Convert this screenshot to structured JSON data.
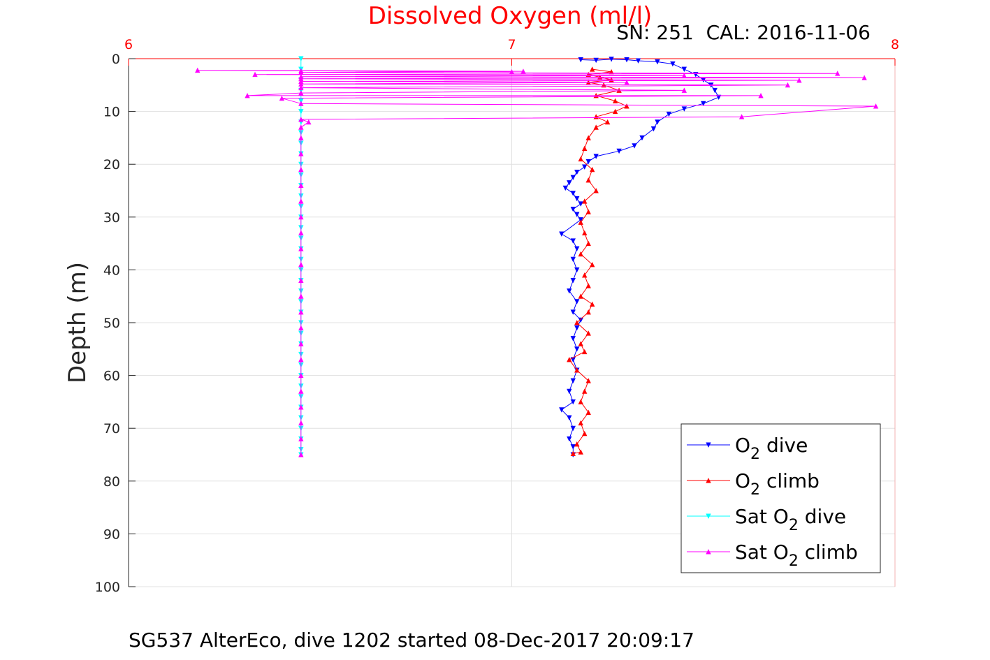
{
  "chart_data": {
    "type": "line",
    "title": "Dissolved Oxygen (ml/l)",
    "subtitle": "SN: 251  CAL: 2016-11-06",
    "caption": "SG537 AlterEco, dive 1202 started 08-Dec-2017 20:09:17",
    "ylabel": "Depth (m)",
    "xlabel": "",
    "xlim": [
      6,
      8
    ],
    "ylim": [
      0,
      100
    ],
    "y_reversed": true,
    "x_axis_position": "top",
    "xticks": [
      "6",
      "7",
      "8"
    ],
    "yticks": [
      "0",
      "10",
      "20",
      "30",
      "40",
      "50",
      "60",
      "70",
      "80",
      "90",
      "100"
    ],
    "grid": true,
    "legend_position": "bottom-right",
    "colors": {
      "title": "#ff0000",
      "x_axis": "#ff0000",
      "o2_dive": "#0000ff",
      "o2_climb": "#ff0000",
      "sat_dive": "#00ffff",
      "sat_climb": "#ff00ff"
    },
    "series": [
      {
        "name_parts": [
          "O",
          "2",
          " dive"
        ],
        "color": "#0000ff",
        "marker": "triangle-down",
        "points": [
          [
            7.18,
            0.2
          ],
          [
            7.22,
            0.3
          ],
          [
            7.26,
            0.1
          ],
          [
            7.3,
            0.2
          ],
          [
            7.33,
            0.4
          ],
          [
            7.38,
            0.6
          ],
          [
            7.42,
            1
          ],
          [
            7.45,
            2
          ],
          [
            7.48,
            3
          ],
          [
            7.5,
            4
          ],
          [
            7.52,
            5
          ],
          [
            7.53,
            6
          ],
          [
            7.54,
            7.3
          ],
          [
            7.5,
            8.5
          ],
          [
            7.45,
            9.5
          ],
          [
            7.41,
            10.5
          ],
          [
            7.38,
            12
          ],
          [
            7.37,
            13.3
          ],
          [
            7.34,
            15
          ],
          [
            7.32,
            16.5
          ],
          [
            7.28,
            17.5
          ],
          [
            7.22,
            18.5
          ],
          [
            7.2,
            19.5
          ],
          [
            7.19,
            20.5
          ],
          [
            7.17,
            21.5
          ],
          [
            7.16,
            22.5
          ],
          [
            7.15,
            23.5
          ],
          [
            7.14,
            24.5
          ],
          [
            7.16,
            25.5
          ],
          [
            7.17,
            26.5
          ],
          [
            7.18,
            27.5
          ],
          [
            7.16,
            28.5
          ],
          [
            7.17,
            29.5
          ],
          [
            7.18,
            30.5
          ],
          [
            7.13,
            33.2
          ],
          [
            7.16,
            34.5
          ],
          [
            7.17,
            36
          ],
          [
            7.16,
            38
          ],
          [
            7.17,
            40
          ],
          [
            7.16,
            42
          ],
          [
            7.15,
            44
          ],
          [
            7.17,
            46
          ],
          [
            7.16,
            48
          ],
          [
            7.18,
            49.5
          ],
          [
            7.17,
            51
          ],
          [
            7.16,
            53
          ],
          [
            7.17,
            55
          ],
          [
            7.16,
            57
          ],
          [
            7.17,
            59
          ],
          [
            7.16,
            61
          ],
          [
            7.15,
            63
          ],
          [
            7.16,
            65
          ],
          [
            7.13,
            66.5
          ],
          [
            7.15,
            68
          ],
          [
            7.16,
            70
          ],
          [
            7.15,
            72
          ],
          [
            7.16,
            73.5
          ],
          [
            7.16,
            75
          ]
        ]
      },
      {
        "name_parts": [
          "O",
          "2",
          " climb"
        ],
        "color": "#ff0000",
        "marker": "triangle-up",
        "points": [
          [
            7.16,
            74.8
          ],
          [
            7.18,
            74.5
          ],
          [
            7.17,
            73
          ],
          [
            7.19,
            71
          ],
          [
            7.18,
            69
          ],
          [
            7.2,
            67
          ],
          [
            7.18,
            65
          ],
          [
            7.19,
            63
          ],
          [
            7.2,
            61
          ],
          [
            7.17,
            59
          ],
          [
            7.15,
            57
          ],
          [
            7.19,
            55.5
          ],
          [
            7.18,
            54
          ],
          [
            7.2,
            52
          ],
          [
            7.17,
            50
          ],
          [
            7.2,
            48
          ],
          [
            7.21,
            46.5
          ],
          [
            7.18,
            45
          ],
          [
            7.2,
            43
          ],
          [
            7.19,
            41
          ],
          [
            7.21,
            39
          ],
          [
            7.18,
            37
          ],
          [
            7.2,
            35
          ],
          [
            7.19,
            33
          ],
          [
            7.18,
            31
          ],
          [
            7.2,
            29
          ],
          [
            7.19,
            27
          ],
          [
            7.22,
            25
          ],
          [
            7.2,
            23
          ],
          [
            7.21,
            21
          ],
          [
            7.18,
            19
          ],
          [
            7.19,
            17
          ],
          [
            7.2,
            15
          ],
          [
            7.22,
            13
          ],
          [
            7.25,
            12
          ],
          [
            7.22,
            11
          ],
          [
            7.27,
            10
          ],
          [
            7.3,
            9
          ],
          [
            7.27,
            8
          ],
          [
            7.22,
            7
          ],
          [
            7.28,
            6
          ],
          [
            7.24,
            5
          ],
          [
            7.2,
            4.5
          ],
          [
            7.26,
            4
          ],
          [
            7.23,
            3.5
          ],
          [
            7.2,
            3
          ],
          [
            7.26,
            2.5
          ],
          [
            7.21,
            2
          ]
        ]
      },
      {
        "name_parts": [
          "Sat O",
          "2",
          " dive"
        ],
        "color": "#00ffff",
        "marker": "triangle-down",
        "points": [
          [
            6.45,
            0
          ],
          [
            6.45,
            2
          ],
          [
            6.45,
            4
          ],
          [
            6.45,
            6
          ],
          [
            6.45,
            8
          ],
          [
            6.45,
            10
          ],
          [
            6.45,
            12
          ],
          [
            6.45,
            14
          ],
          [
            6.45,
            16
          ],
          [
            6.45,
            18
          ],
          [
            6.45,
            20
          ],
          [
            6.45,
            22
          ],
          [
            6.45,
            24
          ],
          [
            6.45,
            26
          ],
          [
            6.45,
            28
          ],
          [
            6.45,
            30
          ],
          [
            6.45,
            32
          ],
          [
            6.45,
            34
          ],
          [
            6.45,
            36
          ],
          [
            6.45,
            38
          ],
          [
            6.45,
            40
          ],
          [
            6.45,
            42
          ],
          [
            6.45,
            44
          ],
          [
            6.45,
            46
          ],
          [
            6.45,
            48
          ],
          [
            6.45,
            50
          ],
          [
            6.45,
            52
          ],
          [
            6.45,
            54
          ],
          [
            6.45,
            56
          ],
          [
            6.45,
            58
          ],
          [
            6.45,
            60
          ],
          [
            6.45,
            62
          ],
          [
            6.45,
            64
          ],
          [
            6.45,
            66
          ],
          [
            6.45,
            68
          ],
          [
            6.45,
            70
          ],
          [
            6.45,
            72
          ],
          [
            6.45,
            74
          ],
          [
            6.45,
            75
          ]
        ]
      },
      {
        "name_parts": [
          "Sat O",
          "2",
          " climb"
        ],
        "color": "#ff00ff",
        "marker": "triangle-up",
        "points": [
          [
            6.45,
            75
          ],
          [
            6.45,
            72
          ],
          [
            6.45,
            69
          ],
          [
            6.45,
            66
          ],
          [
            6.45,
            63
          ],
          [
            6.45,
            60
          ],
          [
            6.45,
            57
          ],
          [
            6.45,
            54
          ],
          [
            6.45,
            51
          ],
          [
            6.45,
            48
          ],
          [
            6.45,
            45
          ],
          [
            6.45,
            42
          ],
          [
            6.45,
            39
          ],
          [
            6.45,
            36
          ],
          [
            6.45,
            33
          ],
          [
            6.45,
            30
          ],
          [
            6.45,
            27
          ],
          [
            6.45,
            24
          ],
          [
            6.45,
            21
          ],
          [
            6.45,
            18
          ],
          [
            6.45,
            15
          ],
          [
            6.45,
            13
          ],
          [
            6.47,
            12
          ],
          [
            6.45,
            11.5
          ],
          [
            7.6,
            11
          ],
          [
            7.95,
            9
          ],
          [
            6.45,
            8.5
          ],
          [
            6.4,
            7.5
          ],
          [
            7.65,
            7
          ],
          [
            6.31,
            7
          ],
          [
            6.45,
            6.5
          ],
          [
            7.45,
            6
          ],
          [
            6.45,
            5.5
          ],
          [
            7.72,
            5
          ],
          [
            6.45,
            4.8
          ],
          [
            7.3,
            4.5
          ],
          [
            6.45,
            4.3
          ],
          [
            7.75,
            4.1
          ],
          [
            6.45,
            3.8
          ],
          [
            7.92,
            3.6
          ],
          [
            6.45,
            3.4
          ],
          [
            7.45,
            3.2
          ],
          [
            6.33,
            3
          ],
          [
            7.85,
            2.8
          ],
          [
            6.45,
            2.6
          ],
          [
            7.03,
            2.4
          ],
          [
            6.18,
            2.2
          ],
          [
            7.0,
            2.5
          ],
          [
            6.45,
            2.3
          ]
        ]
      }
    ]
  }
}
